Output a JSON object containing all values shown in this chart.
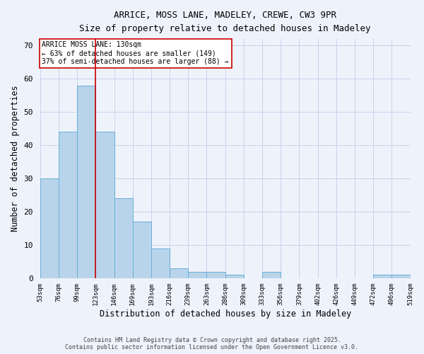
{
  "title_line1": "ARRICE, MOSS LANE, MADELEY, CREWE, CW3 9PR",
  "title_line2": "Size of property relative to detached houses in Madeley",
  "bar_values": [
    30,
    44,
    58,
    44,
    24,
    17,
    9,
    3,
    2,
    2,
    1,
    0,
    2,
    0,
    0,
    0,
    0,
    0,
    1,
    1
  ],
  "x_labels": [
    "53sqm",
    "76sqm",
    "99sqm",
    "123sqm",
    "146sqm",
    "169sqm",
    "193sqm",
    "216sqm",
    "239sqm",
    "263sqm",
    "286sqm",
    "309sqm",
    "333sqm",
    "356sqm",
    "379sqm",
    "402sqm",
    "426sqm",
    "449sqm",
    "472sqm",
    "496sqm",
    "519sqm"
  ],
  "bar_color": "#b8d4eb",
  "bar_edge_color": "#6aaed6",
  "xlabel": "Distribution of detached houses by size in Madeley",
  "ylabel": "Number of detached properties",
  "ylim": [
    0,
    72
  ],
  "yticks": [
    0,
    10,
    20,
    30,
    40,
    50,
    60,
    70
  ],
  "red_line_x": 2.5,
  "red_line_color": "#cc0000",
  "annotation_title": "ARRICE MOSS LANE: 130sqm",
  "annotation_line1": "← 63% of detached houses are smaller (149)",
  "annotation_line2": "37% of semi-detached houses are larger (88) →",
  "annotation_box_color": "#ffffff",
  "annotation_box_edge": "#cc0000",
  "footnote_line1": "Contains HM Land Registry data © Crown copyright and database right 2025.",
  "footnote_line2": "Contains public sector information licensed under the Open Government Licence v3.0.",
  "background_color": "#eef2fb",
  "grid_color": "#c0cfe8"
}
